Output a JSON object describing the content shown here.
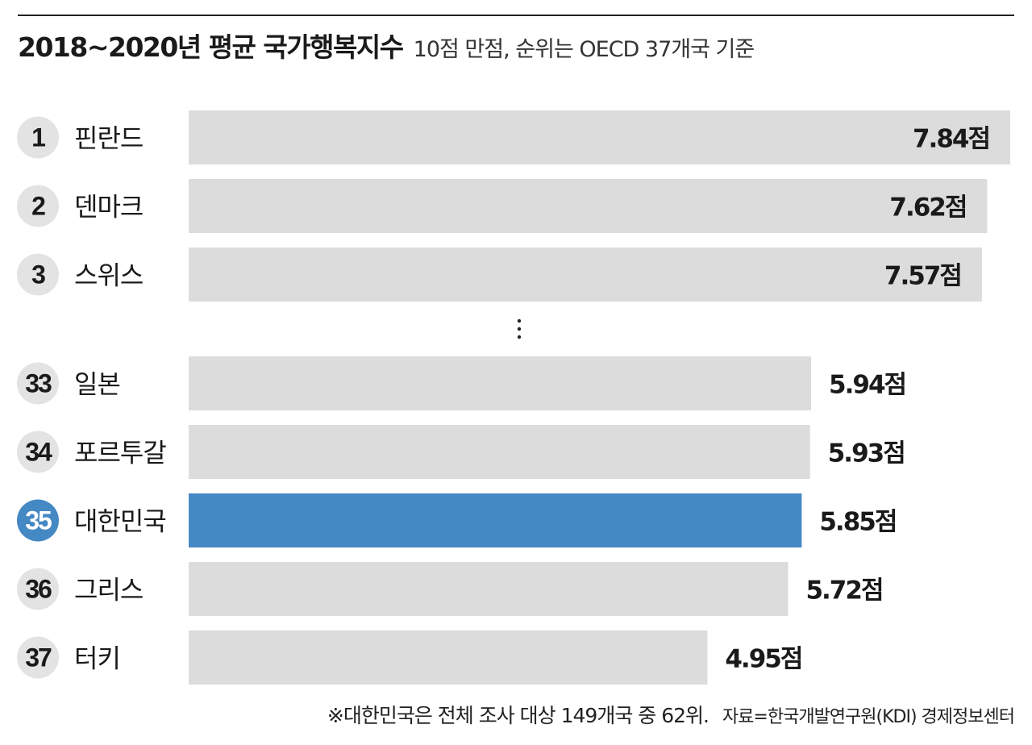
{
  "title": "2018~2020년 평균 국가행복지수",
  "subtitle": "10점 만점, 순위는 OECD 37개국 기준",
  "footnote": "※대한민국은 전체 조사 대상 149개국 중 62위.",
  "source": "자료=한국개발연구원(KDI) 경제정보센터",
  "colors": {
    "bar_default": "#dcdcdc",
    "bar_highlight": "#4488c4",
    "badge_default": "#e3e3e3",
    "badge_highlight": "#4488c4"
  },
  "chart_data": {
    "type": "bar",
    "orientation": "horizontal",
    "unit_suffix": "점",
    "xlim": [
      0,
      7.84
    ],
    "categories": [
      "핀란드",
      "덴마크",
      "스위스",
      "일본",
      "포르투갈",
      "대한민국",
      "그리스",
      "터키"
    ],
    "ranks": [
      "1",
      "2",
      "3",
      "33",
      "34",
      "35",
      "36",
      "37"
    ],
    "values": [
      7.84,
      7.62,
      7.57,
      5.94,
      5.93,
      5.85,
      5.72,
      4.95
    ],
    "value_labels": [
      "7.84점",
      "7.62점",
      "7.57점",
      "5.94점",
      "5.93점",
      "5.85점",
      "5.72점",
      "4.95점"
    ],
    "highlight": "대한민국",
    "gap_after_index": 2
  }
}
